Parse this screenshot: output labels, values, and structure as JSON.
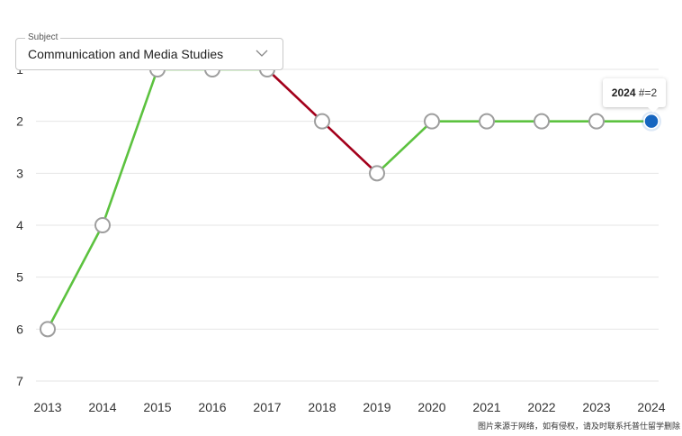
{
  "subject_select": {
    "label": "Subject",
    "value": "Communication and Media Studies"
  },
  "tooltip": {
    "year": "2024",
    "rank_text": "#=2"
  },
  "watermark": "图片来源于网络，如有侵权，请及时联系托普仕留学删除",
  "colors": {
    "improve": "#5cc23f",
    "decline": "#a3001b",
    "point_fill": "#ffffff",
    "point_stroke": "#9e9e9e",
    "highlight": "#1565c0",
    "grid": "#e6e6e6"
  },
  "chart_data": {
    "type": "line",
    "x": [
      "2013",
      "2014",
      "2015",
      "2016",
      "2017",
      "2018",
      "2019",
      "2020",
      "2021",
      "2022",
      "2023",
      "2024"
    ],
    "y_ticks": [
      "1",
      "2",
      "3",
      "4",
      "5",
      "6",
      "7"
    ],
    "ylim": [
      1,
      7
    ],
    "y_inverted": true,
    "series": [
      {
        "values": [
          6,
          4,
          1,
          1,
          1,
          2,
          3,
          2,
          2,
          2,
          2,
          2
        ]
      }
    ],
    "highlight_index": 11,
    "grid": "horizontal"
  }
}
